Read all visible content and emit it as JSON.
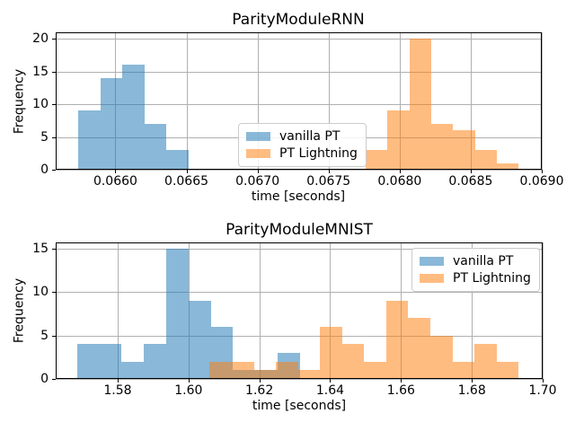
{
  "figure": {
    "background": "#ffffff",
    "text_color": "#000000",
    "grid_color": "#b0b0b0",
    "spine_color": "#000000",
    "legend_border_color": "#cccccc",
    "bar_alpha": 0.52
  },
  "legend": {
    "entries": [
      {
        "label": "vanilla PT",
        "color": "#1f77b4"
      },
      {
        "label": "PT Lightning",
        "color": "#ff7f0e"
      }
    ]
  },
  "chart_data": [
    {
      "type": "histogram",
      "title": "ParityModuleRNN",
      "xlabel": "time [seconds]",
      "ylabel": "Frequency",
      "xlim": [
        0.06558,
        0.069
      ],
      "ylim": [
        0,
        21
      ],
      "grid": true,
      "legend_position": "center",
      "xticks": [
        {
          "value": 0.066,
          "label": "0.0660"
        },
        {
          "value": 0.0665,
          "label": "0.0665"
        },
        {
          "value": 0.067,
          "label": "0.0670"
        },
        {
          "value": 0.0675,
          "label": "0.0675"
        },
        {
          "value": 0.068,
          "label": "0.0680"
        },
        {
          "value": 0.0685,
          "label": "0.0685"
        },
        {
          "value": 0.069,
          "label": "0.0690"
        }
      ],
      "yticks": [
        {
          "value": 0,
          "label": "0"
        },
        {
          "value": 5,
          "label": "5"
        },
        {
          "value": 10,
          "label": "10"
        },
        {
          "value": 15,
          "label": "15"
        },
        {
          "value": 20,
          "label": "20"
        }
      ],
      "series": [
        {
          "name": "vanilla PT",
          "color": "#1f77b4",
          "bin_start": 0.06574,
          "bin_width": 0.000155,
          "counts": [
            9,
            14,
            16,
            7,
            3
          ]
        },
        {
          "name": "PT Lightning",
          "color": "#ff7f0e",
          "bin_start": 0.06776,
          "bin_width": 0.000154,
          "counts": [
            3,
            9,
            20,
            7,
            6,
            3,
            1
          ]
        }
      ]
    },
    {
      "type": "histogram",
      "title": "ParityModuleMNIST",
      "xlabel": "time [seconds]",
      "ylabel": "Frequency",
      "xlim": [
        1.5625,
        1.7
      ],
      "ylim": [
        0,
        15.75
      ],
      "grid": true,
      "legend_position": "upper right",
      "xticks": [
        {
          "value": 1.58,
          "label": "1.58"
        },
        {
          "value": 1.6,
          "label": "1.60"
        },
        {
          "value": 1.62,
          "label": "1.62"
        },
        {
          "value": 1.64,
          "label": "1.64"
        },
        {
          "value": 1.66,
          "label": "1.66"
        },
        {
          "value": 1.68,
          "label": "1.68"
        },
        {
          "value": 1.7,
          "label": "1.70"
        }
      ],
      "yticks": [
        {
          "value": 0,
          "label": "0"
        },
        {
          "value": 5,
          "label": "5"
        },
        {
          "value": 10,
          "label": "10"
        },
        {
          "value": 15,
          "label": "15"
        }
      ],
      "series": [
        {
          "name": "vanilla PT",
          "color": "#1f77b4",
          "bin_start": 1.5685,
          "bin_width": 0.0063,
          "counts": [
            4,
            4,
            2,
            4,
            15,
            9,
            6,
            1,
            1,
            3
          ]
        },
        {
          "name": "PT Lightning",
          "color": "#ff7f0e",
          "bin_start": 1.606,
          "bin_width": 0.00623,
          "counts": [
            2,
            2,
            1,
            2,
            1,
            6,
            4,
            2,
            9,
            7,
            5,
            2,
            4,
            2
          ]
        }
      ]
    }
  ]
}
